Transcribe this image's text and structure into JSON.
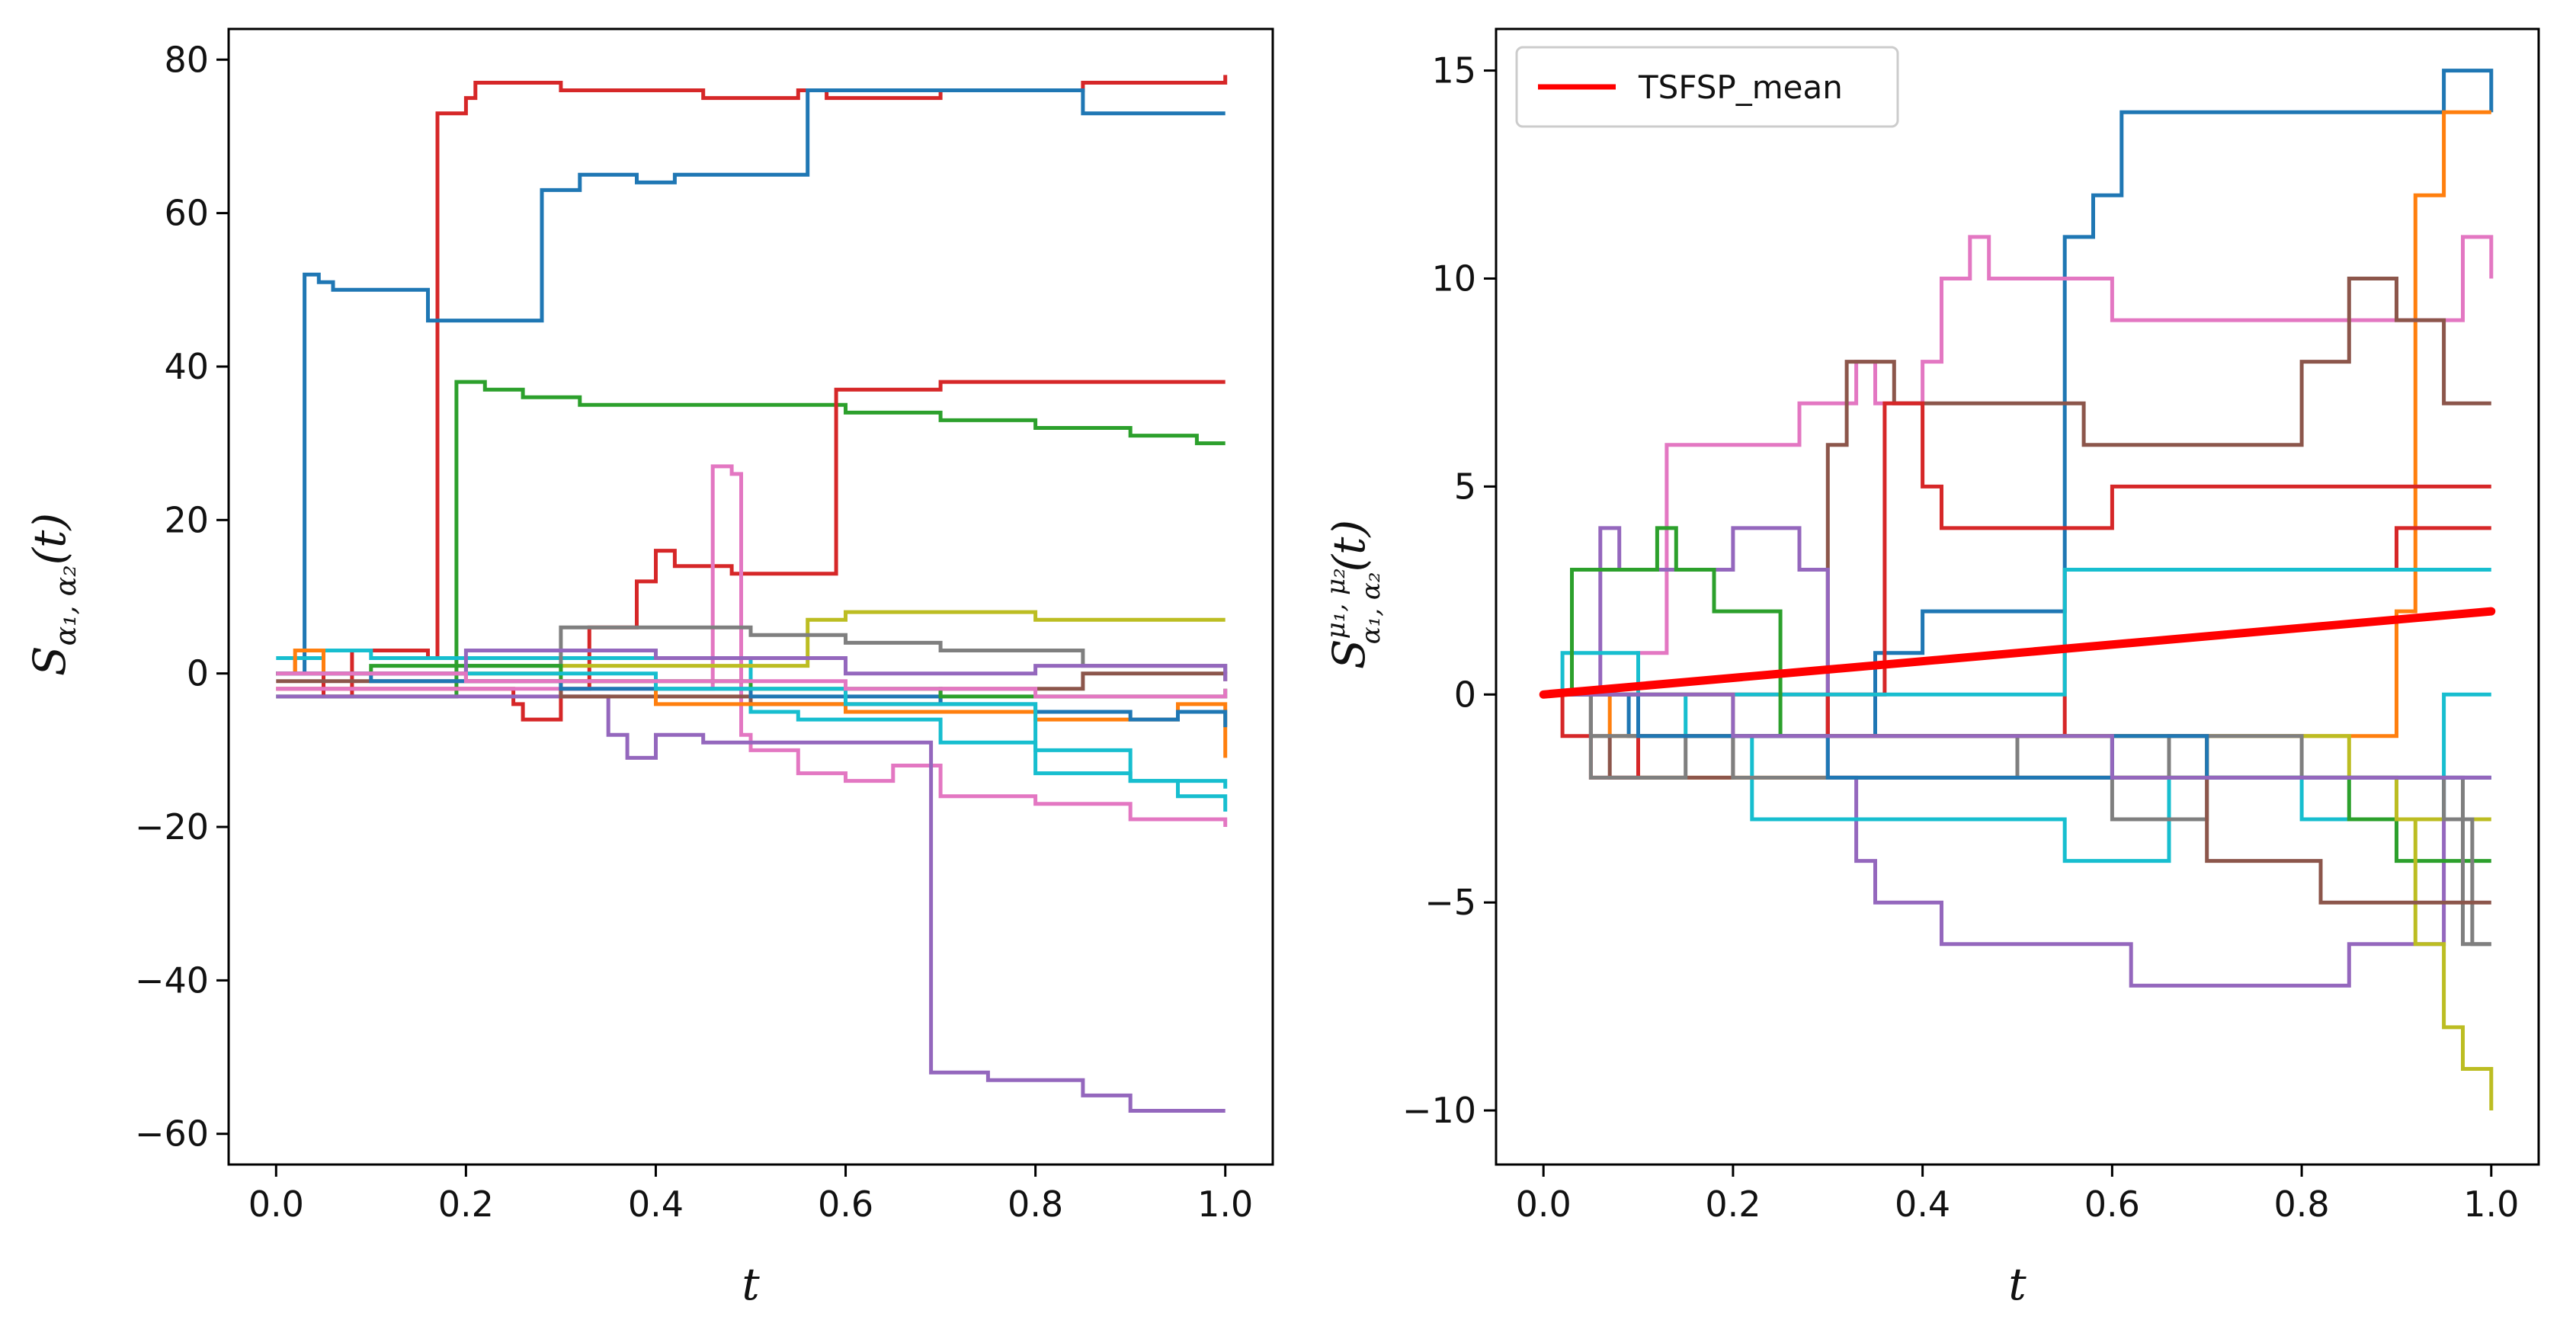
{
  "colors": {
    "blue": "#1f77b4",
    "orange": "#ff7f0e",
    "green": "#2ca02c",
    "red": "#d62728",
    "purple": "#9467bd",
    "brown": "#8c564b",
    "pink": "#e377c2",
    "gray": "#7f7f7f",
    "olive": "#bcbd22",
    "cyan": "#17becf",
    "mean": "#ff0000"
  },
  "chart_data": [
    {
      "type": "line",
      "step": true,
      "xlabel": "t",
      "ylabel": "S_{α1, α2}(t)",
      "xlim": [
        -0.05,
        1.05
      ],
      "ylim": [
        -64,
        84
      ],
      "xticks": [
        0.0,
        0.2,
        0.4,
        0.6,
        0.8,
        1.0
      ],
      "xtick_labels": [
        "0.0",
        "0.2",
        "0.4",
        "0.6",
        "0.8",
        "1.0"
      ],
      "yticks": [
        -60,
        -40,
        -20,
        0,
        20,
        40,
        60,
        80
      ],
      "ytick_labels": [
        "−60",
        "−40",
        "−20",
        "0",
        "20",
        "40",
        "60",
        "80"
      ],
      "grid": false,
      "series": [
        {
          "color": "red",
          "x": [
            0,
            0.02,
            0.05,
            0.08,
            0.16,
            0.17,
            0.2,
            0.21,
            0.3,
            0.38,
            0.45,
            0.5,
            0.55,
            0.58,
            0.7,
            0.85,
            1.0
          ],
          "y": [
            0,
            2,
            -3,
            3,
            2,
            73,
            75,
            77,
            76,
            76,
            75,
            75,
            76,
            75,
            76,
            77,
            78
          ]
        },
        {
          "color": "blue",
          "x": [
            0,
            0.025,
            0.03,
            0.045,
            0.06,
            0.16,
            0.2,
            0.27,
            0.28,
            0.3,
            0.32,
            0.38,
            0.42,
            0.53,
            0.56,
            0.6,
            0.75,
            0.85,
            1.0
          ],
          "y": [
            0,
            0,
            52,
            51,
            50,
            46,
            46,
            46,
            63,
            63,
            65,
            64,
            65,
            65,
            76,
            76,
            76,
            73,
            73
          ]
        },
        {
          "color": "green",
          "x": [
            0,
            0.18,
            0.19,
            0.22,
            0.26,
            0.32,
            0.43,
            0.55,
            0.6,
            0.7,
            0.8,
            0.9,
            0.97,
            1.0
          ],
          "y": [
            -3,
            -3,
            38,
            37,
            36,
            35,
            35,
            35,
            34,
            33,
            32,
            31,
            30,
            30
          ]
        },
        {
          "color": "red",
          "x": [
            0,
            0.25,
            0.26,
            0.3,
            0.33,
            0.38,
            0.4,
            0.42,
            0.48,
            0.53,
            0.59,
            0.65,
            0.7,
            0.85,
            1.0
          ],
          "y": [
            -2,
            -4,
            -6,
            -2,
            6,
            12,
            16,
            14,
            13,
            13,
            37,
            37,
            38,
            38,
            38
          ]
        },
        {
          "color": "pink",
          "x": [
            0,
            0.45,
            0.46,
            0.48,
            0.49,
            0.5,
            0.55,
            0.6,
            0.65,
            0.7,
            0.8,
            0.9,
            1.0
          ],
          "y": [
            -2,
            -2,
            27,
            26,
            -8,
            -10,
            -13,
            -14,
            -12,
            -16,
            -17,
            -19,
            -20
          ]
        },
        {
          "color": "purple",
          "x": [
            0,
            0.34,
            0.35,
            0.37,
            0.4,
            0.45,
            0.68,
            0.69,
            0.75,
            0.85,
            0.9,
            1.0
          ],
          "y": [
            -3,
            -3,
            -8,
            -11,
            -8,
            -9,
            -9,
            -52,
            -53,
            -55,
            -57,
            -57
          ]
        },
        {
          "color": "cyan",
          "x": [
            0,
            0.05,
            0.1,
            0.3,
            0.5,
            0.55,
            0.7,
            0.8,
            0.9,
            0.95,
            1.0
          ],
          "y": [
            2,
            3,
            2,
            2,
            -5,
            -6,
            -9,
            -13,
            -14,
            -16,
            -18
          ]
        },
        {
          "color": "olive",
          "x": [
            0,
            0.3,
            0.55,
            0.56,
            0.6,
            0.8,
            0.9,
            1.0
          ],
          "y": [
            0,
            1,
            1,
            7,
            8,
            7,
            7,
            7
          ]
        },
        {
          "color": "gray",
          "x": [
            0,
            0.2,
            0.3,
            0.5,
            0.6,
            0.7,
            0.85,
            0.9,
            1.0
          ],
          "y": [
            0,
            1,
            6,
            5,
            4,
            3,
            1,
            1,
            0
          ]
        },
        {
          "color": "brown",
          "x": [
            0,
            0.1,
            0.3,
            0.5,
            0.7,
            0.85,
            1.0
          ],
          "y": [
            -1,
            -1,
            -3,
            -4,
            -2,
            0,
            -1
          ]
        },
        {
          "color": "orange",
          "x": [
            0,
            0.02,
            0.05,
            0.2,
            0.4,
            0.6,
            0.8,
            0.95,
            1.0
          ],
          "y": [
            0,
            3,
            0,
            -1,
            -4,
            -5,
            -6,
            -4,
            -11
          ]
        },
        {
          "color": "blue",
          "x": [
            0,
            0.1,
            0.3,
            0.5,
            0.7,
            0.8,
            0.9,
            0.95,
            1.0
          ],
          "y": [
            0,
            -1,
            -2,
            -3,
            -4,
            -5,
            -6,
            -5,
            -7
          ]
        },
        {
          "color": "green",
          "x": [
            0,
            0.1,
            0.3,
            0.5,
            0.7,
            0.9,
            1.0
          ],
          "y": [
            0,
            1,
            -1,
            -2,
            -3,
            -3,
            -2
          ]
        },
        {
          "color": "cyan",
          "x": [
            0,
            0.2,
            0.4,
            0.6,
            0.8,
            0.9,
            1.0
          ],
          "y": [
            0,
            0,
            -2,
            -4,
            -10,
            -14,
            -15
          ]
        },
        {
          "color": "purple",
          "x": [
            0,
            0.2,
            0.4,
            0.6,
            0.8,
            1.0
          ],
          "y": [
            0,
            3,
            2,
            0,
            1,
            -1
          ]
        },
        {
          "color": "pink",
          "x": [
            0,
            0.2,
            0.4,
            0.6,
            0.8,
            1.0
          ],
          "y": [
            0,
            -1,
            -1,
            -2,
            -3,
            -2
          ]
        }
      ]
    },
    {
      "type": "line",
      "step": true,
      "xlabel": "t",
      "ylabel": "S^{μ1, μ2}_{α1, α2}(t)",
      "xlim": [
        -0.05,
        1.05
      ],
      "ylim": [
        -11.3,
        16.0
      ],
      "xticks": [
        0.0,
        0.2,
        0.4,
        0.6,
        0.8,
        1.0
      ],
      "xtick_labels": [
        "0.0",
        "0.2",
        "0.4",
        "0.6",
        "0.8",
        "1.0"
      ],
      "yticks": [
        -10,
        -5,
        0,
        5,
        10,
        15
      ],
      "ytick_labels": [
        "−10",
        "−5",
        "0",
        "5",
        "10",
        "15"
      ],
      "grid": false,
      "legend": {
        "position": "top-left",
        "entries": [
          {
            "label": "TSFSP_mean",
            "color": "mean"
          }
        ]
      },
      "mean": {
        "name": "TSFSP_mean",
        "color": "mean",
        "x": [
          0,
          1.0
        ],
        "y": [
          0,
          2
        ]
      },
      "series": [
        {
          "color": "blue",
          "x": [
            0,
            0.09,
            0.12,
            0.35,
            0.4,
            0.55,
            0.58,
            0.61,
            0.75,
            0.9,
            0.92,
            0.95,
            0.98,
            1.0
          ],
          "y": [
            0,
            -1,
            -1,
            1,
            2,
            11,
            12,
            14,
            14,
            14,
            14,
            15,
            15,
            14
          ]
        },
        {
          "color": "orange",
          "x": [
            0,
            0.07,
            0.1,
            0.2,
            0.3,
            0.5,
            0.6,
            0.7,
            0.9,
            0.92,
            0.95,
            1.0
          ],
          "y": [
            0,
            -1,
            -2,
            -2,
            -2,
            -2,
            -2,
            -1,
            2,
            12,
            14,
            14
          ]
        },
        {
          "color": "pink",
          "x": [
            0,
            0.1,
            0.13,
            0.27,
            0.33,
            0.35,
            0.4,
            0.42,
            0.45,
            0.47,
            0.5,
            0.6,
            0.7,
            0.8,
            0.95,
            0.97,
            1.0
          ],
          "y": [
            0,
            1,
            6,
            7,
            8,
            7,
            8,
            10,
            11,
            10,
            10,
            9,
            9,
            9,
            9,
            11,
            10
          ]
        },
        {
          "color": "brown",
          "x": [
            0,
            0.05,
            0.07,
            0.1,
            0.2,
            0.3,
            0.32,
            0.34,
            0.37,
            0.45,
            0.53,
            0.57,
            0.63,
            0.7,
            0.8,
            0.85,
            0.9,
            0.95,
            1.0
          ],
          "y": [
            0,
            -1,
            -2,
            -2,
            -1,
            6,
            8,
            8,
            7,
            7,
            7,
            6,
            6,
            6,
            8,
            10,
            9,
            7,
            7
          ]
        },
        {
          "color": "purple",
          "x": [
            0,
            0.06,
            0.08,
            0.1,
            0.2,
            0.22,
            0.27,
            0.3,
            0.33,
            0.35,
            0.38,
            0.42,
            0.5,
            0.55,
            0.62,
            0.7,
            0.78,
            0.85,
            0.9,
            0.95,
            1.0
          ],
          "y": [
            0,
            4,
            3,
            3,
            4,
            4,
            3,
            -2,
            -4,
            -5,
            -5,
            -6,
            -6,
            -6,
            -7,
            -7,
            -7,
            -6,
            -6,
            -2,
            -2
          ]
        },
        {
          "color": "red",
          "x": [
            0,
            0.02,
            0.05,
            0.1,
            0.3,
            0.36,
            0.4,
            0.42,
            0.5,
            0.55,
            0.6,
            0.66,
            0.8,
            0.9,
            0.96,
            1.0
          ],
          "y": [
            0,
            -1,
            -2,
            -1,
            0,
            7,
            5,
            4,
            4,
            4,
            5,
            5,
            5,
            5,
            5,
            5
          ]
        },
        {
          "color": "red",
          "x": [
            0,
            0.1,
            0.3,
            0.42,
            0.5,
            0.55,
            0.6,
            0.7,
            0.8,
            0.9,
            0.96,
            1.0
          ],
          "y": [
            0,
            0,
            -1,
            -1,
            -1,
            3,
            3,
            3,
            3,
            4,
            4,
            4
          ]
        },
        {
          "color": "cyan",
          "x": [
            0,
            0.02,
            0.06,
            0.1,
            0.15,
            0.22,
            0.3,
            0.45,
            0.5,
            0.55,
            0.66,
            0.7,
            0.8,
            0.9,
            0.95,
            1.0
          ],
          "y": [
            0,
            1,
            1,
            0,
            -1,
            -3,
            -3,
            -3,
            -3,
            -4,
            -2,
            -2,
            -3,
            -3,
            0,
            0
          ]
        },
        {
          "color": "cyan",
          "x": [
            0,
            0.55,
            0.6,
            0.7,
            0.8,
            0.9,
            0.95,
            1.0
          ],
          "y": [
            0,
            3,
            3,
            3,
            3,
            3,
            3,
            3
          ]
        },
        {
          "color": "green",
          "x": [
            0,
            0.03,
            0.06,
            0.12,
            0.14,
            0.18,
            0.25,
            0.32,
            0.4,
            0.47,
            0.55,
            0.6,
            0.7,
            0.8,
            0.85,
            0.9,
            0.95,
            1.0
          ],
          "y": [
            0,
            3,
            3,
            4,
            3,
            2,
            -1,
            -1,
            -1,
            -1,
            -1,
            -2,
            -2,
            -2,
            -3,
            -4,
            -4,
            -4
          ]
        },
        {
          "color": "olive",
          "x": [
            0,
            0.1,
            0.3,
            0.5,
            0.7,
            0.85,
            0.9,
            0.92,
            0.95,
            0.97,
            1.0
          ],
          "y": [
            0,
            -1,
            -1,
            -1,
            -1,
            -2,
            -3,
            -6,
            -8,
            -9,
            -10
          ]
        },
        {
          "color": "olive",
          "x": [
            0,
            0.2,
            0.4,
            0.6,
            0.7,
            0.8,
            0.9,
            0.95,
            1.0
          ],
          "y": [
            0,
            -1,
            -1,
            -1,
            -2,
            -2,
            -3,
            -3,
            -3
          ]
        },
        {
          "color": "gray",
          "x": [
            0,
            0.05,
            0.1,
            0.2,
            0.3,
            0.5,
            0.6,
            0.66,
            0.7,
            0.8,
            0.9,
            0.95,
            0.98,
            1.0
          ],
          "y": [
            0,
            -1,
            -1,
            -1,
            -1,
            -2,
            -2,
            -1,
            -1,
            -2,
            -2,
            -3,
            -6,
            -6
          ]
        },
        {
          "color": "gray",
          "x": [
            0,
            0.05,
            0.15,
            0.2,
            0.4,
            0.5,
            0.6,
            0.7,
            0.8,
            0.9,
            0.95,
            0.97,
            1.0
          ],
          "y": [
            0,
            -2,
            -1,
            -2,
            -2,
            -2,
            -3,
            -2,
            -2,
            -2,
            -2,
            -6,
            -6
          ]
        },
        {
          "color": "brown",
          "x": [
            0,
            0.1,
            0.3,
            0.5,
            0.66,
            0.7,
            0.8,
            0.82,
            0.86,
            0.9,
            0.95,
            1.0
          ],
          "y": [
            0,
            -1,
            -1,
            -1,
            -1,
            -4,
            -4,
            -5,
            -5,
            -5,
            -5,
            -5
          ]
        },
        {
          "color": "blue",
          "x": [
            0,
            0.1,
            0.3,
            0.55,
            0.6,
            0.7,
            0.8,
            0.95,
            1.0
          ],
          "y": [
            0,
            -1,
            -2,
            -2,
            -1,
            -2,
            -2,
            -2,
            -2
          ]
        },
        {
          "color": "purple",
          "x": [
            0,
            0.2,
            0.4,
            0.6,
            0.8,
            0.95,
            1.0
          ],
          "y": [
            0,
            -1,
            -1,
            -2,
            -2,
            -2,
            -2
          ]
        }
      ]
    }
  ]
}
